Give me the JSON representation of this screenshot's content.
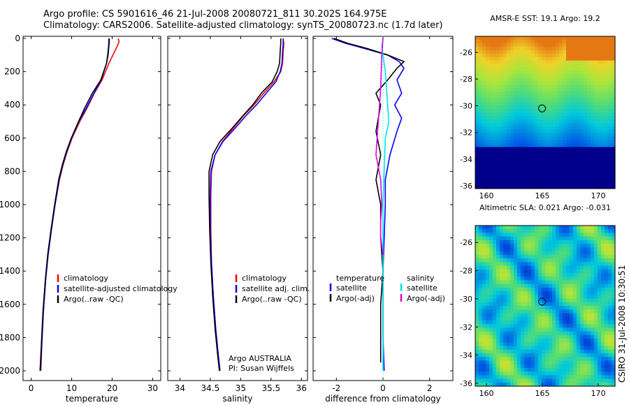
{
  "header": {
    "line1": "Argo profile: CS 5901616_46 21-Jul-2008 20080721_811 30.202S 164.975E",
    "line2": "Climatology: CARS2006. Satellite-adjusted climatology: synTS_20080723.nc (1.7d later)"
  },
  "footer": {
    "institution_note": "CSIRO 31-Jul-2008 10:30:51"
  },
  "colors": {
    "climatology": "#ff0000",
    "satellite": "#0000ff",
    "argo": "#000000",
    "sal_satellite": "#00e5e5",
    "sal_argo": "#e000e0"
  },
  "chart_data": [
    {
      "type": "line",
      "title": "",
      "xlabel": "temperature",
      "ylabel": "",
      "xlim": [
        -2,
        32
      ],
      "ylim": [
        2050,
        0
      ],
      "x_ticks": [
        "0",
        "10",
        "20",
        "30"
      ],
      "y_ticks": [
        "0",
        "200",
        "400",
        "600",
        "800",
        "1000",
        "1200",
        "1400",
        "1600",
        "1800",
        "2000"
      ],
      "legend": [
        "climatology",
        "satellite-adjusted climatology",
        "Argo(..raw -QC)"
      ],
      "legend_position": "lower-right",
      "series": [
        {
          "name": "climatology",
          "color": "climatology",
          "x": [
            21.5,
            21.7,
            21.2,
            20.2,
            19.2,
            17.5,
            15.6,
            13.8,
            12.0,
            10.1,
            8.9,
            7.9,
            7.0,
            5.9,
            5.0,
            4.2,
            3.6,
            3.0,
            2.6,
            2.4
          ],
          "y": [
            0,
            20,
            50,
            100,
            150,
            250,
            330,
            420,
            500,
            600,
            680,
            760,
            850,
            1000,
            1150,
            1300,
            1450,
            1650,
            1850,
            2000
          ]
        },
        {
          "name": "satellite-adjusted climatology",
          "color": "satellite",
          "x": [
            19.3,
            19.3,
            19.2,
            19.0,
            18.6,
            17.3,
            15.5,
            13.6,
            11.8,
            10.0,
            8.8,
            7.8,
            6.9,
            5.9,
            5.0,
            4.2,
            3.6,
            3.0,
            2.6,
            2.3
          ],
          "y": [
            0,
            20,
            50,
            100,
            150,
            250,
            330,
            420,
            500,
            600,
            680,
            760,
            850,
            1000,
            1150,
            1300,
            1450,
            1650,
            1850,
            2000
          ]
        },
        {
          "name": "Argo(..raw -QC)",
          "color": "argo",
          "x": [
            19.2,
            19.2,
            19.1,
            18.9,
            18.6,
            17.2,
            15.1,
            13.2,
            11.7,
            9.9,
            8.7,
            7.7,
            6.8,
            5.8,
            4.9,
            4.1,
            3.5,
            2.9,
            2.5,
            2.2
          ],
          "y": [
            0,
            20,
            50,
            100,
            150,
            250,
            330,
            420,
            500,
            600,
            680,
            760,
            850,
            1000,
            1150,
            1300,
            1450,
            1650,
            1850,
            2000
          ]
        }
      ]
    },
    {
      "type": "line",
      "title": "",
      "xlabel": "salinity",
      "ylabel": "",
      "xlim": [
        33.8,
        36.1
      ],
      "ylim": [
        2050,
        0
      ],
      "x_ticks": [
        "34",
        "34.5",
        "35",
        "35.5",
        "36"
      ],
      "legend": [
        "climatology",
        "satellite adj. clim.",
        "Argo(..raw -QC)"
      ],
      "legend_position": "lower-right",
      "annotations": [
        "Argo AUSTRALIA",
        "PI: Susan Wijffels"
      ],
      "series": [
        {
          "name": "climatology",
          "color": "climatology",
          "x": [
            35.7,
            35.71,
            35.7,
            35.69,
            35.66,
            35.55,
            35.38,
            35.22,
            35.06,
            34.88,
            34.7,
            34.58,
            34.52,
            34.51,
            34.51,
            34.52,
            34.55,
            34.59,
            34.63,
            34.66
          ],
          "y": [
            0,
            30,
            80,
            150,
            200,
            260,
            330,
            400,
            460,
            540,
            620,
            700,
            800,
            950,
            1150,
            1350,
            1550,
            1750,
            1900,
            2000
          ]
        },
        {
          "name": "satellite adj. clim.",
          "color": "satellite",
          "x": [
            35.7,
            35.7,
            35.69,
            35.68,
            35.65,
            35.58,
            35.42,
            35.26,
            35.1,
            34.91,
            34.71,
            34.58,
            34.51,
            34.5,
            34.5,
            34.52,
            34.55,
            34.59,
            34.63,
            34.66
          ],
          "y": [
            0,
            30,
            80,
            150,
            200,
            260,
            330,
            400,
            460,
            540,
            620,
            700,
            800,
            950,
            1150,
            1350,
            1550,
            1750,
            1900,
            2000
          ]
        },
        {
          "name": "Argo(..raw -QC)",
          "color": "argo",
          "x": [
            35.66,
            35.66,
            35.65,
            35.64,
            35.6,
            35.52,
            35.34,
            35.2,
            35.05,
            34.86,
            34.66,
            34.54,
            34.48,
            34.48,
            34.49,
            34.51,
            34.54,
            34.58,
            34.62,
            34.65
          ],
          "y": [
            0,
            30,
            80,
            150,
            200,
            260,
            330,
            400,
            460,
            540,
            620,
            700,
            800,
            950,
            1150,
            1350,
            1550,
            1750,
            1900,
            2000
          ]
        }
      ]
    },
    {
      "type": "line",
      "title": "",
      "xlabel": "difference from climatology",
      "ylabel": "",
      "xlim": [
        -3,
        3
      ],
      "ylim": [
        2050,
        0
      ],
      "x_ticks": [
        "-2",
        "0",
        "2"
      ],
      "legend": [
        "temperature",
        "satellite",
        "Argo(-adj)",
        "salinity",
        "satellite",
        "Argo(-adj)"
      ],
      "legend_position": "lower-center",
      "series": [
        {
          "name": "temperature satellite",
          "color": "satellite",
          "x": [
            -2.2,
            -1.6,
            -0.8,
            0.2,
            0.7,
            0.9,
            0.6,
            0.8,
            0.5,
            0.8,
            0.6,
            0.3,
            0.1,
            0.1,
            0.05,
            0.0,
            0.0,
            0.0,
            0.05
          ],
          "y": [
            0,
            30,
            60,
            100,
            140,
            180,
            250,
            330,
            400,
            480,
            560,
            700,
            850,
            1000,
            1200,
            1400,
            1600,
            1800,
            2000
          ]
        },
        {
          "name": "temperature Argo(-adj)",
          "color": "argo",
          "x": [
            -2.1,
            -1.5,
            -0.7,
            0.2,
            0.9,
            0.6,
            0.2,
            -0.3,
            -0.1,
            -0.2,
            -0.3,
            -0.1,
            -0.3,
            -0.1,
            -0.1,
            0.0,
            -0.1,
            -0.1,
            -0.1
          ],
          "y": [
            0,
            30,
            60,
            100,
            140,
            180,
            250,
            330,
            400,
            480,
            560,
            700,
            850,
            1000,
            1200,
            1400,
            1600,
            1800,
            1950
          ]
        },
        {
          "name": "salinity satellite",
          "color": "sal_satellite",
          "x": [
            0.0,
            -0.05,
            0.0,
            0.1,
            0.15,
            0.2,
            0.25,
            0.1,
            0.05,
            0.0,
            0.0,
            0.0,
            0.0,
            0.0,
            0.0,
            0.0
          ],
          "y": [
            0,
            50,
            100,
            200,
            300,
            400,
            500,
            600,
            800,
            1000,
            1200,
            1400,
            1600,
            1800,
            1950,
            2000
          ]
        },
        {
          "name": "salinity Argo(-adj)",
          "color": "sal_argo",
          "x": [
            0.0,
            -0.05,
            -0.1,
            -0.2,
            -0.3,
            -0.1,
            -0.05,
            -0.1,
            -0.1,
            0.0
          ],
          "y": [
            0,
            100,
            300,
            500,
            700,
            850,
            1000,
            1100,
            1200,
            1300
          ]
        }
      ]
    },
    {
      "type": "heatmap",
      "title": "AMSR-E SST: 19.1 Argo: 19.2",
      "xlim": [
        159,
        171.5
      ],
      "ylim": [
        -36.2,
        -24.8
      ],
      "x_ticks": [
        "160",
        "165",
        "170"
      ],
      "y_ticks": [
        "-26",
        "-28",
        "-30",
        "-32",
        "-34",
        "-36"
      ],
      "marker": {
        "lon": 164.975,
        "lat": -30.202
      }
    },
    {
      "type": "heatmap",
      "title": "Altimetric SLA: 0.021 Argo: -0.031",
      "xlim": [
        159,
        171.5
      ],
      "ylim": [
        -36.2,
        -24.8
      ],
      "x_ticks": [
        "160",
        "165",
        "170"
      ],
      "y_ticks": [
        "-26",
        "-28",
        "-30",
        "-32",
        "-34",
        "-36"
      ],
      "marker": {
        "lon": 164.975,
        "lat": -30.202
      }
    }
  ]
}
